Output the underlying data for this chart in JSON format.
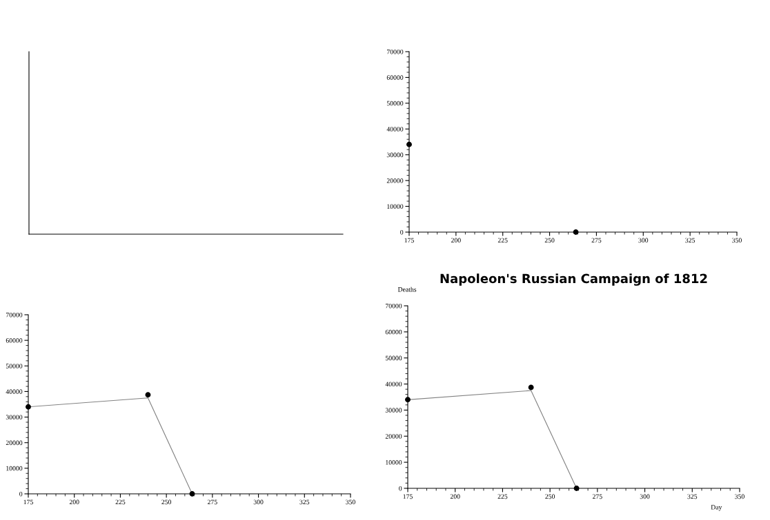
{
  "chart_data": [
    {
      "type": "other"
    },
    {
      "type": "scatter",
      "x": [
        175,
        264
      ],
      "values": [
        34000,
        0
      ],
      "color": "#000000",
      "marker": "circle",
      "xlim": [
        175,
        350
      ],
      "xticks": [
        175,
        200,
        225,
        250,
        275,
        300,
        325,
        350
      ],
      "ylim": [
        0,
        70000
      ],
      "yticks": [
        0,
        10000,
        20000,
        30000,
        40000,
        50000,
        60000,
        70000
      ]
    },
    {
      "type": "line",
      "xlim": [
        175,
        350
      ],
      "xticks": [
        175,
        200,
        225,
        250,
        275,
        300,
        325,
        350
      ],
      "ylim": [
        0,
        70000
      ],
      "yticks": [
        0,
        10000,
        20000,
        30000,
        40000,
        50000,
        60000,
        70000
      ],
      "series": [
        {
          "type": "line",
          "color": "#808080",
          "x": [
            175,
            240,
            264
          ],
          "values": [
            34000,
            37500,
            0
          ],
          "marker": "none"
        },
        {
          "type": "scatter",
          "color": "#000000",
          "x": [
            175,
            240,
            264
          ],
          "values": [
            34000,
            38700,
            0
          ],
          "marker": "circle"
        }
      ]
    },
    {
      "type": "line",
      "title": "Napoleon's Russian Campaign of 1812",
      "xlabel": "Day",
      "ylabel": "Deaths",
      "xlim": [
        175,
        350
      ],
      "xticks": [
        175,
        200,
        225,
        250,
        275,
        300,
        325,
        350
      ],
      "ylim": [
        0,
        70000
      ],
      "yticks": [
        0,
        10000,
        20000,
        30000,
        40000,
        50000,
        60000,
        70000
      ],
      "series": [
        {
          "type": "line",
          "color": "#808080",
          "x": [
            175,
            240,
            264
          ],
          "values": [
            34000,
            37500,
            0
          ],
          "marker": "none"
        },
        {
          "type": "scatter",
          "color": "#000000",
          "x": [
            175,
            240,
            264
          ],
          "values": [
            34000,
            38700,
            0
          ],
          "marker": "circle"
        }
      ]
    }
  ]
}
